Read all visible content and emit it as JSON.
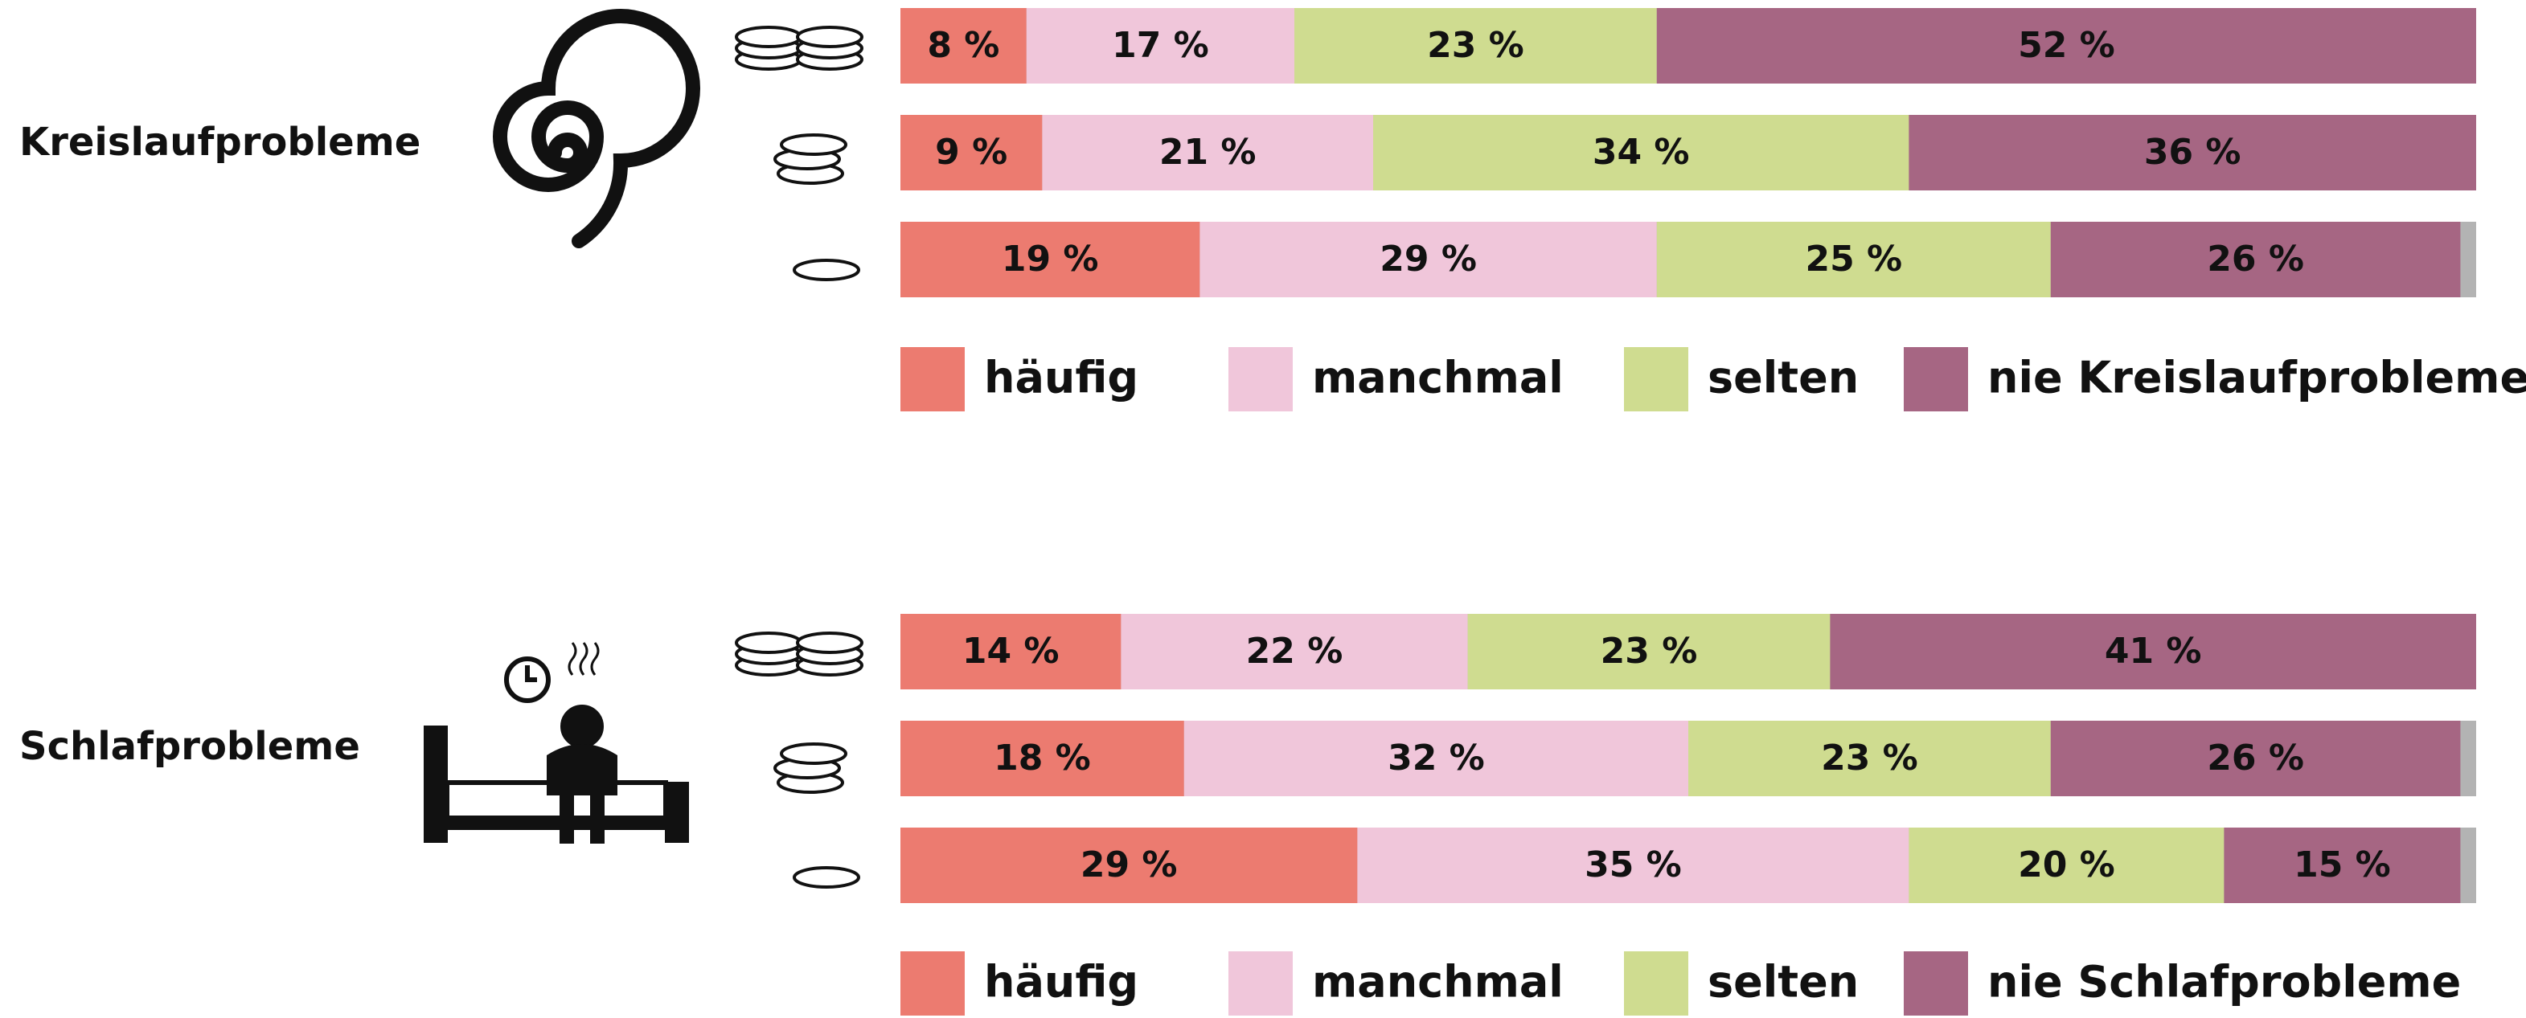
{
  "chart_data": [
    {
      "type": "bar",
      "orientation": "horizontal",
      "stacked": true,
      "title": "Kreislaufprobleme",
      "categories": [
        null,
        null,
        null
      ],
      "xlim": [
        0,
        100
      ],
      "series": [
        {
          "name": "häufig",
          "color": "#ec7b70",
          "values": [
            8,
            9,
            19
          ],
          "value_labels": [
            "8 %",
            "9 %",
            "19 %"
          ]
        },
        {
          "name": "manchmal",
          "color": "#f0c6da",
          "values": [
            17,
            21,
            29
          ],
          "value_labels": [
            "17 %",
            "21 %",
            "29 %"
          ]
        },
        {
          "name": "selten",
          "color": "#cfdc90",
          "values": [
            23,
            34,
            25
          ],
          "value_labels": [
            "23 %",
            "34 %",
            "25 %"
          ]
        },
        {
          "name": "nie Kreislaufprobleme",
          "color": "#a66683",
          "values": [
            52,
            36,
            26
          ],
          "value_labels": [
            "52 %",
            "36 %",
            "26 %"
          ]
        }
      ]
    },
    {
      "type": "bar",
      "orientation": "horizontal",
      "stacked": true,
      "title": "Schlafprobleme",
      "categories": [
        null,
        null,
        null
      ],
      "xlim": [
        0,
        100
      ],
      "series": [
        {
          "name": "häufig",
          "color": "#ec7b70",
          "values": [
            14,
            18,
            29
          ],
          "value_labels": [
            "14 %",
            "18 %",
            "29 %"
          ]
        },
        {
          "name": "manchmal",
          "color": "#f0c6da",
          "values": [
            22,
            32,
            35
          ],
          "value_labels": [
            "22 %",
            "32 %",
            "35 %"
          ]
        },
        {
          "name": "selten",
          "color": "#cfdc90",
          "values": [
            23,
            23,
            20
          ],
          "value_labels": [
            "23 %",
            "23 %",
            "20 %"
          ]
        },
        {
          "name": "nie Schlafprobleme",
          "color": "#a66683",
          "values": [
            41,
            26,
            15
          ],
          "value_labels": [
            "41 %",
            "26 %",
            "15 %"
          ]
        }
      ]
    }
  ]
}
